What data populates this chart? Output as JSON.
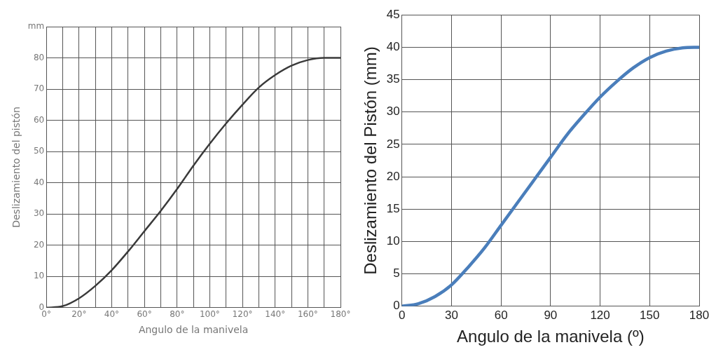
{
  "chart_data": [
    {
      "type": "line",
      "xlabel": "Angulo de la manivela",
      "ylabel": "Deslizamiento del pistón",
      "xlim": [
        0,
        180
      ],
      "xticks": [
        {
          "value": 0,
          "label": "0°"
        },
        {
          "value": 10,
          "label": null
        },
        {
          "value": 20,
          "label": "20°"
        },
        {
          "value": 30,
          "label": null
        },
        {
          "value": 40,
          "label": "40°"
        },
        {
          "value": 50,
          "label": null
        },
        {
          "value": 60,
          "label": "60°"
        },
        {
          "value": 70,
          "label": null
        },
        {
          "value": 80,
          "label": "80°"
        },
        {
          "value": 90,
          "label": null
        },
        {
          "value": 100,
          "label": "100°"
        },
        {
          "value": 110,
          "label": null
        },
        {
          "value": 120,
          "label": "120°"
        },
        {
          "value": 130,
          "label": null
        },
        {
          "value": 140,
          "label": "140°"
        },
        {
          "value": 150,
          "label": null
        },
        {
          "value": 160,
          "label": "160°"
        },
        {
          "value": 170,
          "label": null
        },
        {
          "value": 180,
          "label": "180°"
        }
      ],
      "ylim": [
        0,
        90
      ],
      "yticks": [
        0,
        10,
        20,
        30,
        40,
        50,
        60,
        70,
        80,
        {
          "value": 90,
          "label": "mm"
        }
      ],
      "grid": true,
      "series": [
        {
          "color": "#3a3a3a",
          "x": [
            0,
            10,
            20,
            30,
            40,
            50,
            60,
            70,
            80,
            90,
            100,
            110,
            120,
            130,
            140,
            150,
            160,
            170,
            180
          ],
          "values": [
            0,
            0.5,
            3,
            7,
            12,
            18,
            24.5,
            31,
            38,
            45.5,
            52.5,
            59,
            65,
            70.5,
            74.5,
            77.5,
            79.3,
            80,
            80
          ]
        }
      ]
    },
    {
      "type": "line",
      "xlabel": "Angulo de la manivela (º)",
      "ylabel": "Deslizamiento del Pistón (mm)",
      "xlim": [
        0,
        180
      ],
      "xticks": [
        0,
        30,
        60,
        90,
        120,
        150,
        180
      ],
      "ylim": [
        0,
        45
      ],
      "yticks": [
        0,
        5,
        10,
        15,
        20,
        25,
        30,
        35,
        40,
        45
      ],
      "grid": true,
      "series": [
        {
          "color": "#4a7ebb",
          "x": [
            0,
            10,
            20,
            30,
            40,
            50,
            60,
            70,
            80,
            90,
            100,
            110,
            120,
            130,
            140,
            150,
            160,
            170,
            180
          ],
          "values": [
            0,
            0.4,
            1.5,
            3.3,
            6,
            9,
            12.5,
            16,
            19.5,
            23,
            26.5,
            29.5,
            32.3,
            34.7,
            36.8,
            38.4,
            39.4,
            39.9,
            40
          ]
        }
      ]
    }
  ]
}
